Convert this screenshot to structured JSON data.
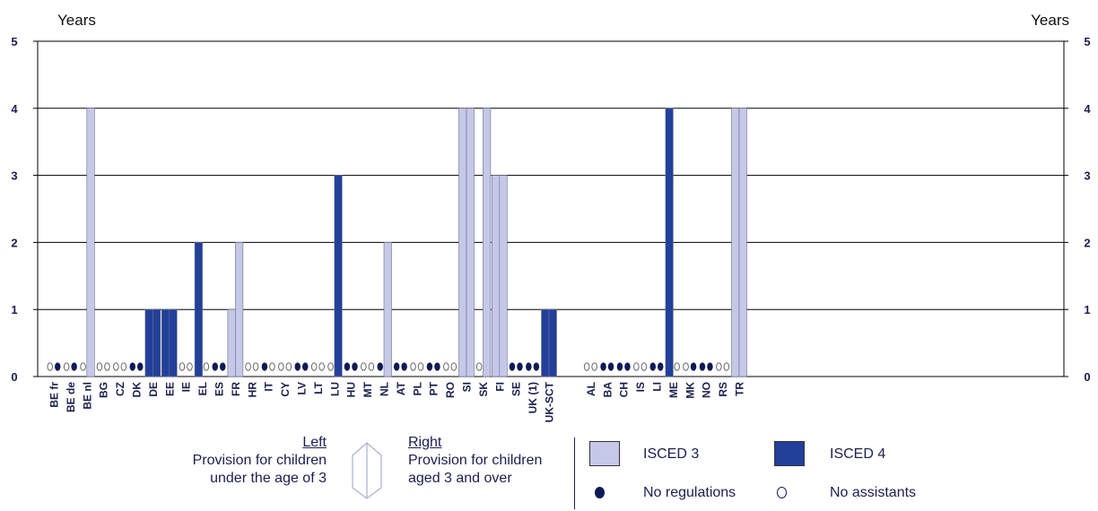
{
  "chart_data": {
    "type": "bar",
    "ylabel_left": "Years",
    "ylabel_right": "Years",
    "ylim": [
      0,
      5
    ],
    "yticks": [
      "0",
      "1",
      "2",
      "3",
      "4",
      "5"
    ],
    "grid": true,
    "series": [
      {
        "name": "ISCED 3",
        "color": "#c5c8e6"
      },
      {
        "name": "ISCED 4",
        "color": "#22409a"
      }
    ],
    "categories": [
      {
        "label": "BE fr",
        "left": {
          "status": "no-assistants"
        },
        "right": {
          "status": "no-regulations"
        }
      },
      {
        "label": "BE de",
        "left": {
          "status": "no-assistants"
        },
        "right": {
          "status": "no-regulations"
        }
      },
      {
        "label": "BE nl",
        "left": {
          "status": "no-assistants"
        },
        "right": {
          "isced": "3",
          "value": 4
        }
      },
      {
        "label": "BG",
        "left": {
          "status": "no-assistants"
        },
        "right": {
          "status": "no-assistants"
        }
      },
      {
        "label": "CZ",
        "left": {
          "status": "no-assistants"
        },
        "right": {
          "status": "no-assistants"
        }
      },
      {
        "label": "DK",
        "left": {
          "status": "no-regulations"
        },
        "right": {
          "status": "no-regulations"
        }
      },
      {
        "label": "DE",
        "left": {
          "isced": "4",
          "value": 1
        },
        "right": {
          "isced": "4",
          "value": 1
        }
      },
      {
        "label": "EE",
        "left": {
          "isced": "4",
          "value": 1
        },
        "right": {
          "isced": "4",
          "value": 1
        }
      },
      {
        "label": "IE",
        "left": {
          "status": "no-assistants"
        },
        "right": {
          "status": "no-assistants"
        }
      },
      {
        "label": "EL",
        "left": {
          "isced": "4",
          "value": 2
        },
        "right": {
          "status": "no-assistants"
        }
      },
      {
        "label": "ES",
        "left": {
          "status": "no-regulations"
        },
        "right": {
          "status": "no-regulations"
        }
      },
      {
        "label": "FR",
        "left": {
          "isced": "3",
          "value": 1
        },
        "right": {
          "isced": "3",
          "value": 2
        }
      },
      {
        "label": "HR",
        "left": {
          "status": "no-assistants"
        },
        "right": {
          "status": "no-assistants"
        }
      },
      {
        "label": "IT",
        "left": {
          "status": "no-regulations"
        },
        "right": {
          "status": "no-assistants"
        }
      },
      {
        "label": "CY",
        "left": {
          "status": "no-assistants"
        },
        "right": {
          "status": "no-assistants"
        }
      },
      {
        "label": "LV",
        "left": {
          "status": "no-regulations"
        },
        "right": {
          "status": "no-regulations"
        }
      },
      {
        "label": "LT",
        "left": {
          "status": "no-assistants"
        },
        "right": {
          "status": "no-assistants"
        }
      },
      {
        "label": "LU",
        "left": {
          "status": "no-assistants"
        },
        "right": {
          "isced": "4",
          "value": 3
        }
      },
      {
        "label": "HU",
        "left": {
          "status": "no-regulations"
        },
        "right": {
          "status": "no-regulations"
        }
      },
      {
        "label": "MT",
        "left": {
          "status": "no-assistants"
        },
        "right": {
          "status": "no-assistants"
        }
      },
      {
        "label": "NL",
        "left": {
          "status": "no-regulations"
        },
        "right": {
          "isced": "3",
          "value": 2
        }
      },
      {
        "label": "AT",
        "left": {
          "status": "no-regulations"
        },
        "right": {
          "status": "no-regulations"
        }
      },
      {
        "label": "PL",
        "left": {
          "status": "no-assistants"
        },
        "right": {
          "status": "no-assistants"
        }
      },
      {
        "label": "PT",
        "left": {
          "status": "no-regulations"
        },
        "right": {
          "status": "no-regulations"
        }
      },
      {
        "label": "RO",
        "left": {
          "status": "no-assistants"
        },
        "right": {
          "status": "no-assistants"
        }
      },
      {
        "label": "SI",
        "left": {
          "isced": "3",
          "value": 4
        },
        "right": {
          "isced": "3",
          "value": 4
        }
      },
      {
        "label": "SK",
        "left": {
          "status": "no-assistants"
        },
        "right": {
          "isced": "3",
          "value": 4
        }
      },
      {
        "label": "FI",
        "left": {
          "isced": "3",
          "value": 3
        },
        "right": {
          "isced": "3",
          "value": 3
        }
      },
      {
        "label": "SE",
        "left": {
          "status": "no-regulations"
        },
        "right": {
          "status": "no-regulations"
        }
      },
      {
        "label": "UK (1)",
        "left": {
          "status": "no-regulations"
        },
        "right": {
          "status": "no-regulations"
        }
      },
      {
        "label": "UK-SCT",
        "left": {
          "isced": "4",
          "value": 1
        },
        "right": {
          "isced": "4",
          "value": 1
        }
      },
      {
        "label": "AL",
        "left": {
          "status": "no-assistants"
        },
        "right": {
          "status": "no-assistants"
        }
      },
      {
        "label": "BA",
        "left": {
          "status": "no-regulations"
        },
        "right": {
          "status": "no-regulations"
        }
      },
      {
        "label": "CH",
        "left": {
          "status": "no-regulations"
        },
        "right": {
          "status": "no-regulations"
        }
      },
      {
        "label": "IS",
        "left": {
          "status": "no-assistants"
        },
        "right": {
          "status": "no-assistants"
        }
      },
      {
        "label": "LI",
        "left": {
          "status": "no-regulations"
        },
        "right": {
          "status": "no-regulations"
        }
      },
      {
        "label": "ME",
        "left": {
          "isced": "4",
          "value": 4
        },
        "right": {
          "status": "no-assistants"
        }
      },
      {
        "label": "MK",
        "left": {
          "status": "no-assistants"
        },
        "right": {
          "status": "no-regulations"
        }
      },
      {
        "label": "NO",
        "left": {
          "status": "no-regulations"
        },
        "right": {
          "status": "no-regulations"
        }
      },
      {
        "label": "RS",
        "left": {
          "status": "no-assistants"
        },
        "right": {
          "status": "no-assistants"
        }
      },
      {
        "label": "TR",
        "left": {
          "isced": "3",
          "value": 4
        },
        "right": {
          "isced": "3",
          "value": 4
        }
      }
    ]
  },
  "legend": {
    "left_title": "Left",
    "left_line1": "Provision for children",
    "left_line2": "under the age of 3",
    "right_title": "Right",
    "right_line1": "Provision for children",
    "right_line2": "aged 3 and over",
    "isced3_label": "ISCED 3",
    "isced4_label": "ISCED 4",
    "no_regulations_label": "No regulations",
    "no_assistants_label": "No assistants"
  },
  "colors": {
    "isced3": "#c5c8e6",
    "isced4": "#22409a",
    "dot": "#0d1b55",
    "text": "#1a1f4e"
  }
}
